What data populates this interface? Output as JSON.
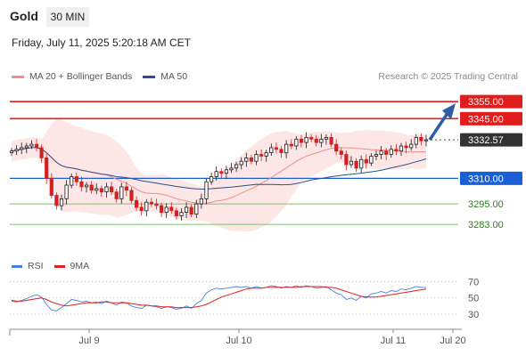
{
  "header": {
    "instrument": "Gold",
    "timeframe": "30 MIN",
    "datetime": "Friday, July 11, 2025 5:20:18 AM CET"
  },
  "legend": {
    "ma20": "MA 20 + Bollinger Bands",
    "ma50": "MA 50",
    "credit": "Research © 2025 Trading Central"
  },
  "rsi_legend": {
    "rsi": "RSI",
    "ma": "9MA"
  },
  "colors": {
    "resistance": "#e01e1e",
    "pivot": "#1a5fd6",
    "support": "#7cc26a",
    "candle_up": "#1a1a1a",
    "candle_down": "#d42020",
    "ma20": "#f08c8c",
    "ma50": "#2b4f8a",
    "bollinger_fill": "#fde0e0",
    "arrow": "#2b5fa3",
    "rsi": "#4a7fd6",
    "rsi_ma": "#e02020"
  },
  "chart_data": {
    "type": "candlestick",
    "ylim": [
      3270,
      3365
    ],
    "levels": [
      {
        "label": "3355.00",
        "value": 3355,
        "kind": "resistance"
      },
      {
        "label": "3345.00",
        "value": 3345,
        "kind": "resistance"
      },
      {
        "label": "3332.57",
        "value": 3332.57,
        "kind": "last"
      },
      {
        "label": "3310.00",
        "value": 3310,
        "kind": "pivot"
      },
      {
        "label": "3295.00",
        "value": 3295,
        "kind": "support"
      },
      {
        "label": "3283.00",
        "value": 3283,
        "kind": "support"
      }
    ],
    "x_ticks": [
      "Jul 9",
      "Jul 10",
      "Jul 11",
      "Jul 20"
    ],
    "close": [
      3326,
      3327,
      3328,
      3329,
      3330,
      3328,
      3322,
      3310,
      3300,
      3294,
      3298,
      3306,
      3311,
      3308,
      3305,
      3306,
      3303,
      3304,
      3302,
      3305,
      3302,
      3298,
      3305,
      3303,
      3297,
      3293,
      3291,
      3296,
      3295,
      3294,
      3290,
      3293,
      3291,
      3288,
      3290,
      3293,
      3289,
      3295,
      3298,
      3308,
      3311,
      3314,
      3313,
      3315,
      3316,
      3318,
      3320,
      3322,
      3320,
      3324,
      3323,
      3325,
      3328,
      3327,
      3325,
      3330,
      3329,
      3333,
      3331,
      3334,
      3333,
      3331,
      3333,
      3334,
      3330,
      3326,
      3324,
      3318,
      3320,
      3316,
      3321,
      3319,
      3323,
      3324,
      3326,
      3324,
      3327,
      3326,
      3329,
      3328,
      3330,
      3334,
      3332,
      3332.57
    ],
    "rsi": {
      "ylim": [
        20,
        75
      ],
      "ticks": [
        70,
        50,
        30
      ],
      "rsi_values": [
        46,
        45,
        47,
        49,
        52,
        54,
        51,
        42,
        35,
        34,
        38,
        43,
        48,
        47,
        45,
        46,
        44,
        45,
        43,
        46,
        44,
        41,
        45,
        44,
        40,
        38,
        37,
        41,
        40,
        39,
        37,
        39,
        38,
        36,
        37,
        40,
        37,
        43,
        47,
        56,
        60,
        62,
        61,
        62,
        63,
        64,
        63,
        64,
        62,
        64,
        62,
        63,
        65,
        64,
        62,
        64,
        63,
        65,
        63,
        65,
        64,
        62,
        63,
        64,
        60,
        56,
        54,
        48,
        50,
        47,
        52,
        50,
        55,
        56,
        58,
        56,
        59,
        58,
        61,
        60,
        62,
        64,
        63,
        63
      ],
      "ma_values": [
        47,
        46,
        46,
        47,
        48,
        49,
        50,
        48,
        45,
        43,
        41,
        40,
        41,
        42,
        43,
        44,
        44,
        44,
        45,
        45,
        44,
        44,
        44,
        44,
        43,
        42,
        41,
        41,
        40,
        40,
        39,
        39,
        39,
        38,
        38,
        38,
        38,
        39,
        40,
        42,
        45,
        48,
        51,
        53,
        55,
        57,
        59,
        61,
        62,
        62,
        62,
        63,
        63,
        63,
        63,
        63,
        63,
        63,
        64,
        64,
        64,
        64,
        64,
        63,
        63,
        62,
        60,
        58,
        56,
        54,
        52,
        51,
        51,
        51,
        52,
        53,
        54,
        55,
        56,
        57,
        58,
        59,
        60,
        61
      ]
    }
  }
}
